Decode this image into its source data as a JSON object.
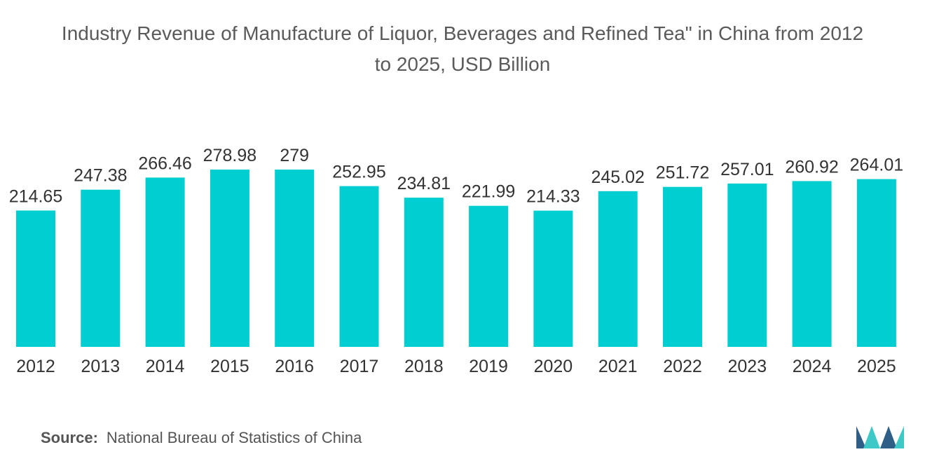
{
  "header": {
    "title_line1": "Industry Revenue of Manufacture of Liquor, Beverages and Refined Tea\" in China from 2012",
    "title_line2": "to 2025, USD Billion"
  },
  "footer": {
    "source_label": "Source:",
    "source_text": "National Bureau of Statistics of China",
    "logo_icon": "mordor-intelligence-logo-icon"
  },
  "colors": {
    "bar": "#00CED1",
    "logo_dark": "#2F5F86",
    "logo_light": "#3EC8C6"
  },
  "chart_data": {
    "type": "bar",
    "title": "Industry Revenue of Manufacture of Liquor, Beverages and Refined Tea\" in China from 2012 to 2025, USD Billion",
    "xlabel": "",
    "ylabel": "",
    "categories": [
      "2012",
      "2013",
      "2014",
      "2015",
      "2016",
      "2017",
      "2018",
      "2019",
      "2020",
      "2021",
      "2022",
      "2023",
      "2024",
      "2025"
    ],
    "values": [
      214.65,
      247.38,
      266.46,
      278.98,
      279,
      252.95,
      234.81,
      221.99,
      214.33,
      245.02,
      251.72,
      257.01,
      260.92,
      264.01
    ],
    "value_labels": [
      "214.65",
      "247.38",
      "266.46",
      "278.98",
      "279",
      "252.95",
      "234.81",
      "221.99",
      "214.33",
      "245.02",
      "251.72",
      "257.01",
      "260.92",
      "264.01"
    ],
    "ylim": [
      0,
      279
    ],
    "grid": false,
    "legend": "none"
  }
}
